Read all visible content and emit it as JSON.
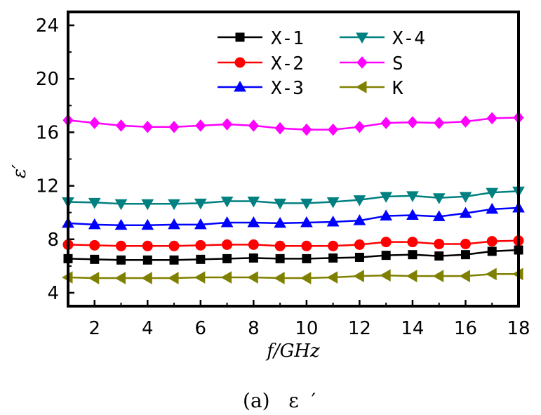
{
  "chart_data": {
    "type": "line",
    "xlabel": "f/GHz",
    "ylabel": "ε′",
    "caption": "(a)   ε  ′",
    "xlim": [
      1,
      18
    ],
    "ylim": [
      3,
      25
    ],
    "xticks": [
      2,
      4,
      6,
      8,
      10,
      12,
      14,
      16,
      18
    ],
    "yticks": [
      4,
      8,
      12,
      16,
      20,
      24
    ],
    "legend_position": "top",
    "x": [
      1,
      2,
      3,
      4,
      5,
      6,
      7,
      8,
      9,
      10,
      11,
      12,
      13,
      14,
      15,
      16,
      17,
      18
    ],
    "series": [
      {
        "name": "X-1",
        "color": "#000000",
        "marker": "square",
        "values": [
          6.55,
          6.5,
          6.45,
          6.45,
          6.45,
          6.5,
          6.55,
          6.6,
          6.55,
          6.55,
          6.6,
          6.65,
          6.8,
          6.85,
          6.75,
          6.85,
          7.1,
          7.2
        ]
      },
      {
        "name": "X-2",
        "color": "#ff0000",
        "marker": "circle",
        "values": [
          7.6,
          7.55,
          7.5,
          7.5,
          7.5,
          7.55,
          7.6,
          7.6,
          7.5,
          7.5,
          7.5,
          7.6,
          7.8,
          7.8,
          7.65,
          7.65,
          7.85,
          7.9
        ]
      },
      {
        "name": "X-3",
        "color": "#0000ff",
        "marker": "triangle-up",
        "values": [
          9.2,
          9.1,
          9.05,
          9.05,
          9.1,
          9.1,
          9.25,
          9.25,
          9.2,
          9.25,
          9.3,
          9.4,
          9.75,
          9.8,
          9.7,
          9.95,
          10.25,
          10.35
        ]
      },
      {
        "name": "X-4",
        "color": "#008080",
        "marker": "triangle-down",
        "values": [
          10.8,
          10.75,
          10.65,
          10.65,
          10.65,
          10.7,
          10.85,
          10.85,
          10.7,
          10.7,
          10.8,
          10.95,
          11.2,
          11.25,
          11.1,
          11.2,
          11.5,
          11.6
        ]
      },
      {
        "name": "S",
        "color": "#ff00ff",
        "marker": "diamond",
        "values": [
          16.9,
          16.7,
          16.5,
          16.4,
          16.4,
          16.5,
          16.6,
          16.5,
          16.3,
          16.2,
          16.2,
          16.4,
          16.7,
          16.75,
          16.7,
          16.8,
          17.05,
          17.1
        ]
      },
      {
        "name": "K",
        "color": "#808000",
        "marker": "triangle-left",
        "values": [
          5.15,
          5.1,
          5.1,
          5.1,
          5.1,
          5.15,
          5.15,
          5.15,
          5.1,
          5.1,
          5.15,
          5.25,
          5.3,
          5.25,
          5.25,
          5.25,
          5.4,
          5.4
        ]
      }
    ]
  }
}
